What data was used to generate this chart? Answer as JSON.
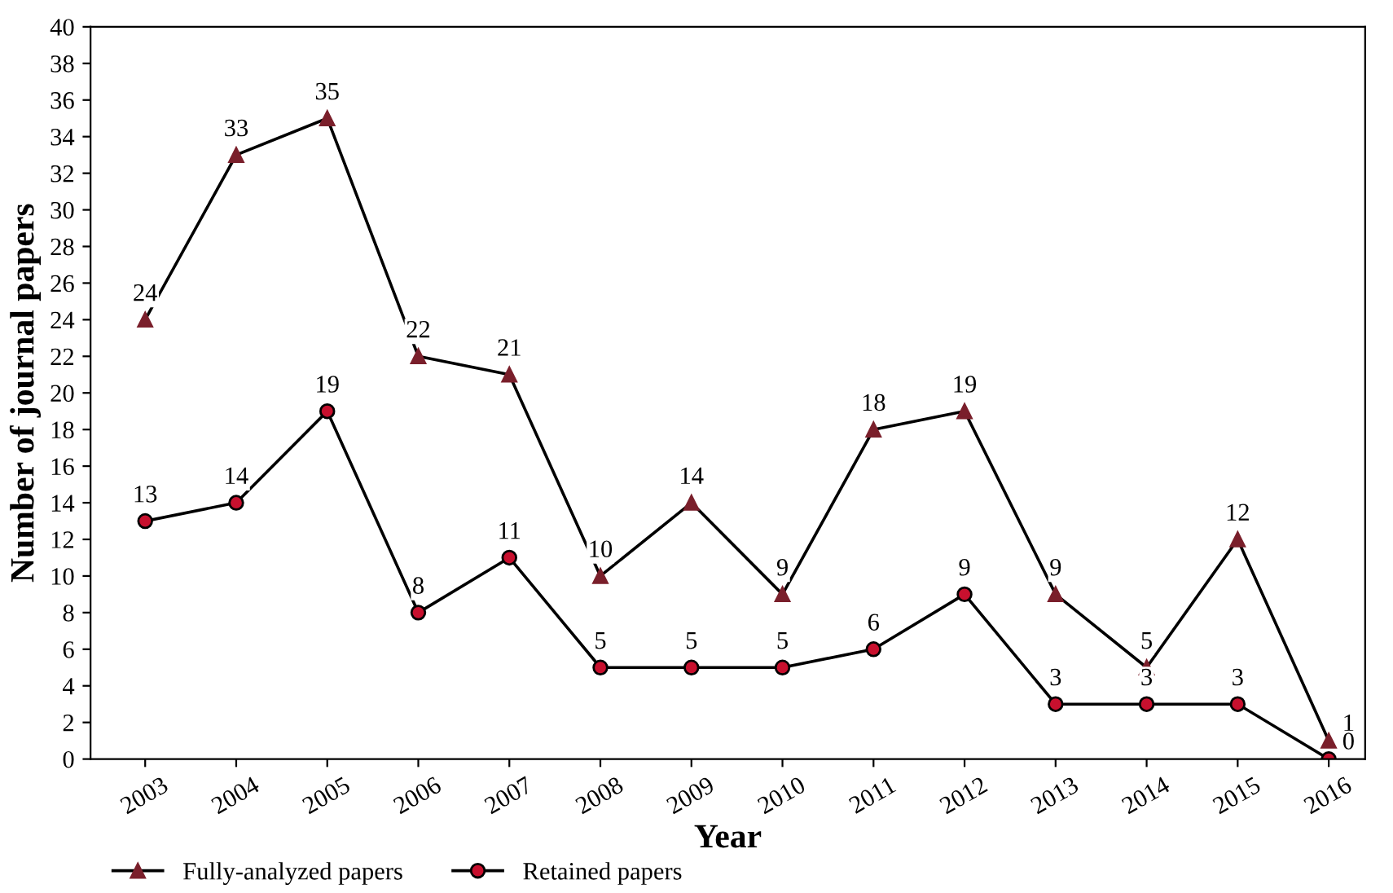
{
  "chart_data": {
    "type": "line",
    "xlabel": "Year",
    "ylabel": "Number of journal papers",
    "categories": [
      "2003",
      "2004",
      "2005",
      "2006",
      "2007",
      "2008",
      "2009",
      "2010",
      "2011",
      "2012",
      "2013",
      "2014",
      "2015",
      "2016"
    ],
    "series": [
      {
        "name": "Fully-analyzed papers",
        "color": "#7a1f2b",
        "marker": "triangle",
        "values": [
          24,
          33,
          35,
          22,
          21,
          10,
          14,
          9,
          18,
          19,
          9,
          5,
          12,
          1
        ]
      },
      {
        "name": "Retained papers",
        "color": "#c8102e",
        "marker": "circle",
        "values": [
          13,
          14,
          19,
          8,
          11,
          5,
          5,
          5,
          6,
          9,
          3,
          3,
          3,
          0
        ]
      }
    ],
    "ylim": [
      0,
      40
    ],
    "yticks": [
      0,
      2,
      4,
      6,
      8,
      10,
      12,
      14,
      16,
      18,
      20,
      22,
      24,
      26,
      28,
      30,
      32,
      34,
      36,
      38,
      40
    ],
    "data_labels": true,
    "grid": false,
    "legend": "bottom left",
    "line_style": "solid"
  }
}
